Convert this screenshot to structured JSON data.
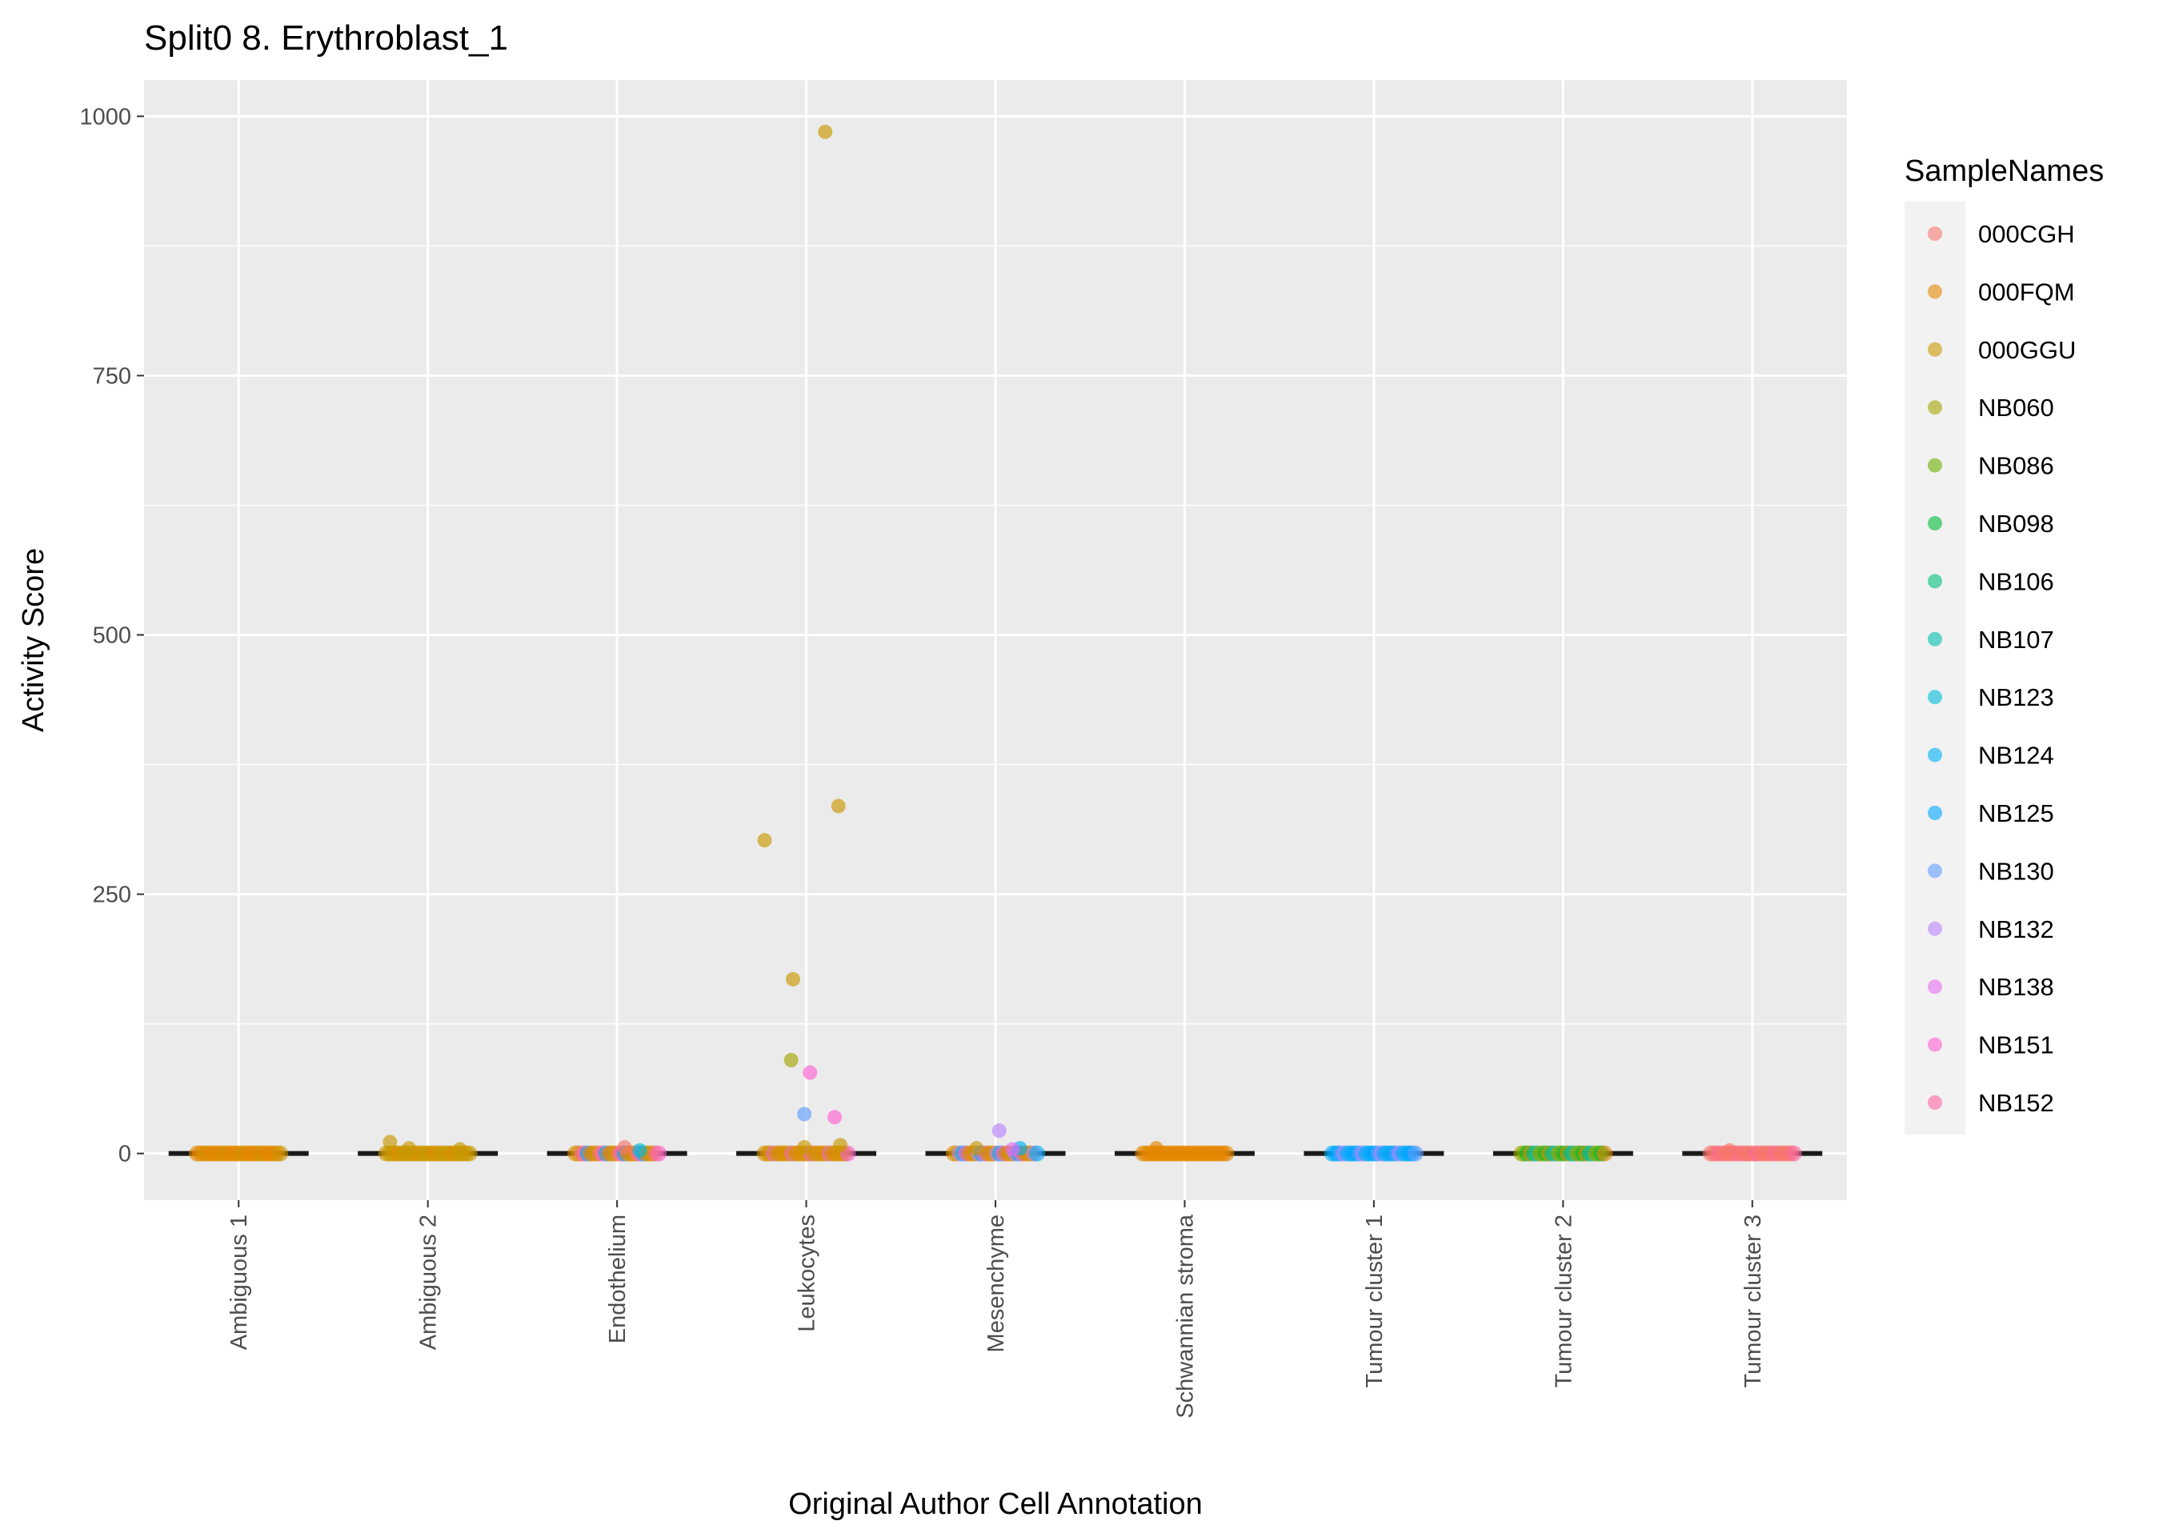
{
  "chart_data": {
    "type": "scatter",
    "title": "Split0 8. Erythroblast_1",
    "xlabel": "Original Author Cell Annotation",
    "ylabel": "Activity Score",
    "categories": [
      "Ambiguous 1",
      "Ambiguous 2",
      "Endothelium",
      "Leukocytes",
      "Mesenchyme",
      "Schwannian stroma",
      "Tumour cluster 1",
      "Tumour cluster 2",
      "Tumour cluster 3"
    ],
    "ylim": [
      -45,
      1035
    ],
    "yticks": [
      0,
      250,
      500,
      750,
      1000
    ],
    "grid": true,
    "legend_position": "right",
    "legend": {
      "title": "SampleNames",
      "entries": [
        {
          "name": "000CGH",
          "color": "#F8766D"
        },
        {
          "name": "000FQM",
          "color": "#E58700"
        },
        {
          "name": "000GGU",
          "color": "#C99800"
        },
        {
          "name": "NB060",
          "color": "#A3A500"
        },
        {
          "name": "NB086",
          "color": "#6BB100"
        },
        {
          "name": "NB098",
          "color": "#00BA38"
        },
        {
          "name": "NB106",
          "color": "#00BF7D"
        },
        {
          "name": "NB107",
          "color": "#00C0AF"
        },
        {
          "name": "NB123",
          "color": "#00BCD8"
        },
        {
          "name": "NB124",
          "color": "#00B0F6"
        },
        {
          "name": "NB125",
          "color": "#00A5FF"
        },
        {
          "name": "NB130",
          "color": "#619CFF"
        },
        {
          "name": "NB132",
          "color": "#B983FF"
        },
        {
          "name": "NB138",
          "color": "#E76BF3"
        },
        {
          "name": "NB151",
          "color": "#FD61D1"
        },
        {
          "name": "NB152",
          "color": "#FF67A4"
        }
      ]
    },
    "points": [
      {
        "category": "Leukocytes",
        "sample": "000GGU",
        "y": 985,
        "offset": 0.1
      },
      {
        "category": "Leukocytes",
        "sample": "000GGU",
        "y": 335,
        "offset": 0.17
      },
      {
        "category": "Leukocytes",
        "sample": "000GGU",
        "y": 302,
        "offset": -0.22
      },
      {
        "category": "Leukocytes",
        "sample": "000GGU",
        "y": 168,
        "offset": -0.07
      },
      {
        "category": "Leukocytes",
        "sample": "NB060",
        "y": 90,
        "offset": -0.08
      },
      {
        "category": "Leukocytes",
        "sample": "NB151",
        "y": 78,
        "offset": 0.02
      },
      {
        "category": "Leukocytes",
        "sample": "NB130",
        "y": 38,
        "offset": -0.01
      },
      {
        "category": "Leukocytes",
        "sample": "NB151",
        "y": 35,
        "offset": 0.15
      },
      {
        "category": "Leukocytes",
        "sample": "000GGU",
        "y": 8,
        "offset": 0.18
      },
      {
        "category": "Leukocytes",
        "sample": "000GGU",
        "y": 6,
        "offset": -0.01
      },
      {
        "category": "Mesenchyme",
        "sample": "NB132",
        "y": 22,
        "offset": 0.02
      },
      {
        "category": "Mesenchyme",
        "sample": "NB124",
        "y": 5,
        "offset": 0.13
      },
      {
        "category": "Mesenchyme",
        "sample": "NB138",
        "y": 4,
        "offset": 0.09
      },
      {
        "category": "Mesenchyme",
        "sample": "000GGU",
        "y": 5,
        "offset": -0.1
      },
      {
        "category": "Ambiguous 2",
        "sample": "000GGU",
        "y": 11,
        "offset": -0.2
      },
      {
        "category": "Ambiguous 2",
        "sample": "000GGU",
        "y": 5,
        "offset": -0.1
      },
      {
        "category": "Ambiguous 2",
        "sample": "000GGU",
        "y": 4,
        "offset": 0.17
      },
      {
        "category": "Endothelium",
        "sample": "000CGH",
        "y": 6,
        "offset": 0.04
      },
      {
        "category": "Endothelium",
        "sample": "NB123",
        "y": 3,
        "offset": 0.12
      },
      {
        "category": "Schwannian stroma",
        "sample": "000FQM",
        "y": 5,
        "offset": -0.15
      },
      {
        "category": "Tumour cluster 3",
        "sample": "000CGH",
        "y": 3,
        "offset": -0.12
      }
    ],
    "baseline_clusters": [
      {
        "category": "Ambiguous 1",
        "value": 0,
        "samples": [
          "000FQM",
          "000FQM",
          "000FQM",
          "000GGU",
          "000FQM",
          "000FQM"
        ]
      },
      {
        "category": "Ambiguous 2",
        "value": 0,
        "samples": [
          "000GGU",
          "000GGU",
          "000GGU",
          "000GGU",
          "000FQM",
          "000GGU"
        ]
      },
      {
        "category": "Endothelium",
        "value": 0,
        "samples": [
          "000FQM",
          "000GGU",
          "000CGH",
          "NB151",
          "NB124",
          "000FQM"
        ]
      },
      {
        "category": "Leukocytes",
        "value": 0,
        "samples": [
          "000GGU",
          "000FQM",
          "000GGU",
          "NB151",
          "000GGU",
          "000FQM"
        ]
      },
      {
        "category": "Mesenchyme",
        "value": 0,
        "samples": [
          "000FQM",
          "000GGU",
          "NB132",
          "NB124",
          "NB151",
          "000FQM"
        ]
      },
      {
        "category": "Schwannian stroma",
        "value": 0,
        "samples": [
          "000FQM",
          "000FQM",
          "000FQM",
          "000FQM",
          "000FQM",
          "000FQM"
        ]
      },
      {
        "category": "Tumour cluster 1",
        "value": 0,
        "samples": [
          "NB124",
          "NB125",
          "NB125",
          "NB130",
          "NB132",
          "NB124"
        ]
      },
      {
        "category": "Tumour cluster 2",
        "value": 0,
        "samples": [
          "NB060",
          "NB086",
          "NB098",
          "000FQM",
          "NB106",
          "NB107"
        ]
      },
      {
        "category": "Tumour cluster 3",
        "value": 0,
        "samples": [
          "000CGH",
          "000CGH",
          "000CGH",
          "NB152",
          "000CGH",
          "000CGH"
        ]
      }
    ]
  }
}
